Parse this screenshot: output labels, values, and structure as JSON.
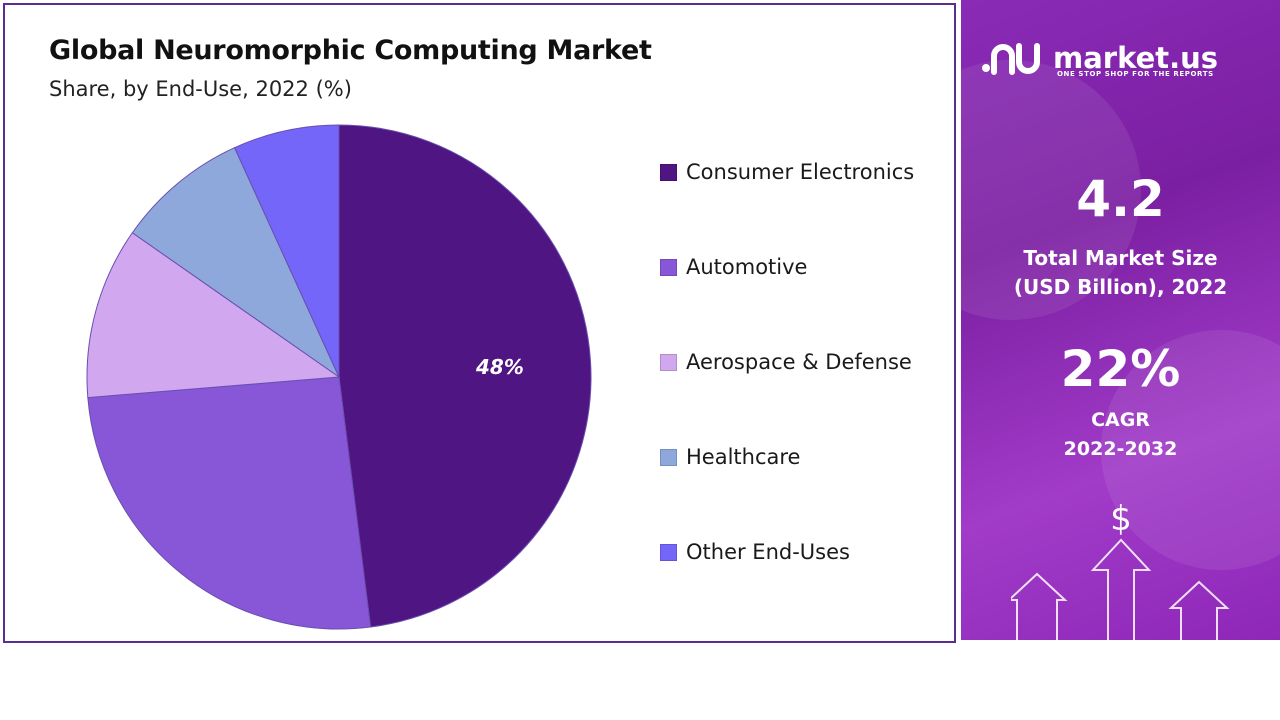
{
  "chart_data": {
    "type": "pie",
    "title": "Global Neuromorphic Computing Market",
    "subtitle": "Share, by End-Use, 2022 (%)",
    "start_angle_deg": 0,
    "direction": "clockwise",
    "slices": [
      {
        "label": "Consumer Electronics",
        "value": 48,
        "color": "#4f1583",
        "data_label": "48%"
      },
      {
        "label": "Automotive",
        "value": 25.7,
        "color": "#8757d8",
        "data_label": ""
      },
      {
        "label": "Aerospace & Defense",
        "value": 11,
        "color": "#d1a8ef",
        "data_label": ""
      },
      {
        "label": "Healthcare",
        "value": 8.5,
        "color": "#8ea8dc",
        "data_label": ""
      },
      {
        "label": "Other End-Uses",
        "value": 6.8,
        "color": "#7366f9",
        "data_label": ""
      }
    ],
    "legend_position": "right"
  },
  "side_panel": {
    "logo_text": "market.us",
    "tagline": "ONE STOP SHOP FOR THE REPORTS",
    "market_size_value": "4.2",
    "market_size_label_1": "Total Market Size",
    "market_size_label_2": "(USD Billion), 2022",
    "cagr_value": "22%",
    "cagr_label_1": "CAGR",
    "cagr_label_2": "2022-2032",
    "dollar_symbol": "$",
    "background_color": "#8a2bb6"
  }
}
